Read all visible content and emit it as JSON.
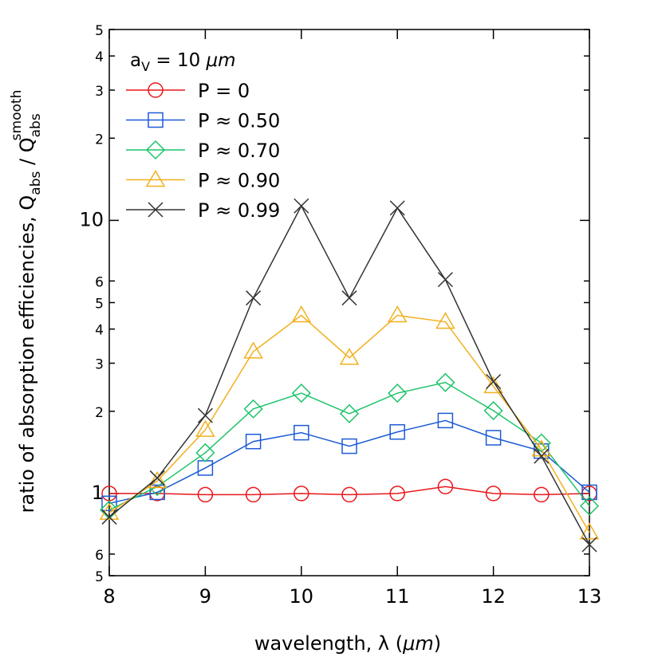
{
  "chart_data": {
    "type": "line",
    "xlabel_parts": [
      "wavelength, λ (",
      "μm",
      ")"
    ],
    "ylabel_parts": [
      "ratio of absorption efficiencies, Q",
      "abs",
      " / Q",
      "abs",
      "smooth"
    ],
    "legend_title_parts": [
      "a",
      "V",
      " = 10 ",
      "μm"
    ],
    "x": [
      8,
      8.5,
      9,
      9.5,
      10,
      10.5,
      11,
      11.5,
      12,
      12.5,
      13
    ],
    "xlim": [
      8,
      13
    ],
    "xticks": [
      8,
      9,
      10,
      11,
      12,
      13
    ],
    "ylim": [
      0.5,
      50
    ],
    "yscale": "log",
    "yticks": [
      {
        "value": 0.5,
        "label": "5"
      },
      {
        "value": 0.6,
        "label": "6"
      },
      1,
      2,
      3,
      4,
      5,
      6,
      10,
      {
        "value": 20,
        "label": "2"
      },
      {
        "value": 30,
        "label": "3"
      },
      {
        "value": 40,
        "label": "4"
      },
      {
        "value": 50,
        "label": "5"
      }
    ],
    "legend": "upper left",
    "series": [
      {
        "name": "P = 0",
        "color": "#e8161b",
        "marker": "circle",
        "values": [
          1.0,
          1.0,
          0.99,
          0.99,
          1.0,
          0.99,
          1.0,
          1.06,
          1.0,
          0.99,
          1.0
        ]
      },
      {
        "name": "P ≈ 0.50",
        "color": "#1c5bd6",
        "marker": "square",
        "values": [
          0.92,
          1.01,
          1.24,
          1.55,
          1.67,
          1.49,
          1.68,
          1.85,
          1.6,
          1.43,
          1.01
        ]
      },
      {
        "name": "P ≈ 0.70",
        "color": "#1ec46a",
        "marker": "diamond",
        "values": [
          0.87,
          1.06,
          1.41,
          2.04,
          2.33,
          1.96,
          2.33,
          2.55,
          2.01,
          1.53,
          0.9
        ]
      },
      {
        "name": "P ≈ 0.90",
        "color": "#f2b01e",
        "marker": "triangle",
        "values": [
          0.85,
          1.11,
          1.71,
          3.31,
          4.49,
          3.14,
          4.49,
          4.25,
          2.47,
          1.45,
          0.72
        ]
      },
      {
        "name": "P ≈ 0.99",
        "color": "#333333",
        "marker": "x",
        "values": [
          0.82,
          1.14,
          1.93,
          5.2,
          11.3,
          5.2,
          11.1,
          6.07,
          2.57,
          1.37,
          0.65
        ]
      }
    ]
  }
}
